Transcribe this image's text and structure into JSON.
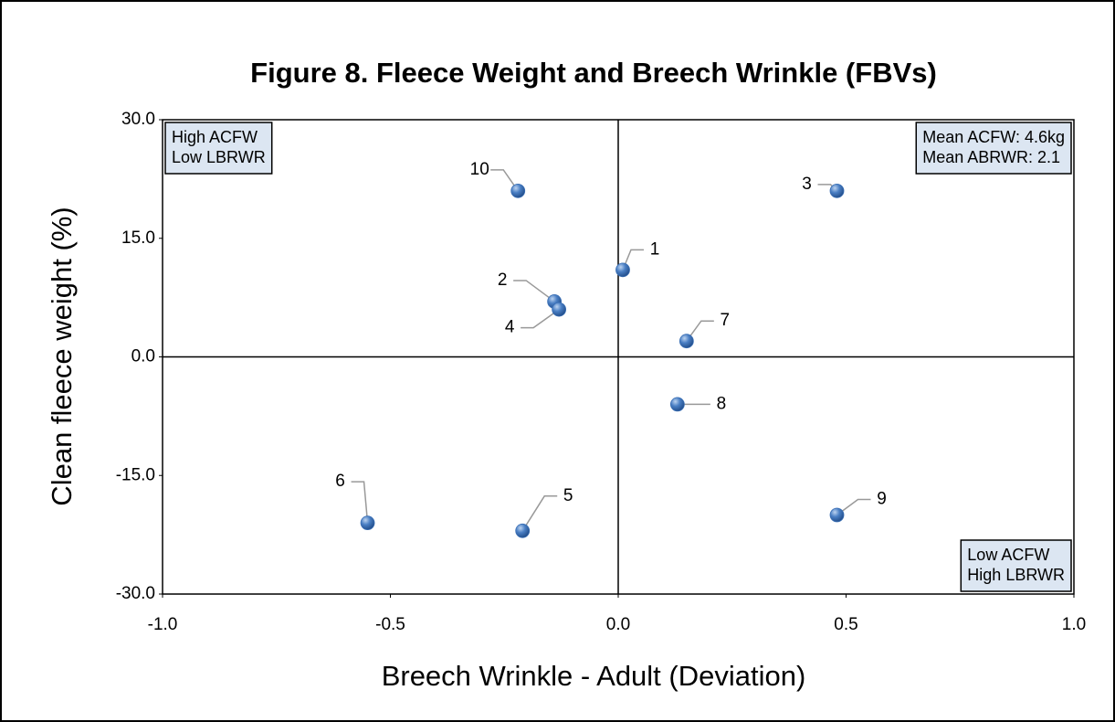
{
  "chart_data": {
    "type": "scatter",
    "title": "Figure 8.  Fleece Weight and Breech Wrinkle (FBVs)",
    "xlabel": "Breech Wrinkle - Adult (Deviation)",
    "ylabel": "Clean fleece weight (%)",
    "x": [
      0.01,
      -0.14,
      0.48,
      -0.13,
      -0.21,
      -0.55,
      0.15,
      0.13,
      0.48,
      -0.22
    ],
    "values": [
      11,
      7,
      21,
      6,
      -22,
      -21,
      2,
      -6,
      -20,
      21
    ],
    "labels": [
      "1",
      "2",
      "3",
      "4",
      "5",
      "6",
      "7",
      "8",
      "9",
      "10"
    ],
    "color": "#3a6fb5",
    "xlim": [
      -1,
      1
    ],
    "xticks": [
      {
        "value": -1,
        "label": "-1.0"
      },
      -0.5,
      {
        "value": 0,
        "label": "0.0"
      },
      0.5,
      {
        "value": 1,
        "label": "1.0"
      }
    ],
    "ylim": [
      -30,
      30
    ],
    "yticks": [
      {
        "value": -30,
        "label": "-30.0"
      },
      {
        "value": -15,
        "label": "-15.0"
      },
      {
        "value": 0,
        "label": "0.0"
      },
      {
        "value": 15,
        "label": "15.0"
      },
      {
        "value": 30,
        "label": "30.0"
      }
    ],
    "annotations": [
      {
        "corner": "top-left",
        "lines": [
          "High ACFW",
          "Low LBRWR"
        ]
      },
      {
        "corner": "top-right",
        "lines": [
          "Mean ACFW: 4.6kg",
          "Mean ABRWR: 2.1"
        ]
      },
      {
        "corner": "bottom-right",
        "lines": [
          "Low ACFW",
          "High LBRWR"
        ]
      }
    ]
  }
}
